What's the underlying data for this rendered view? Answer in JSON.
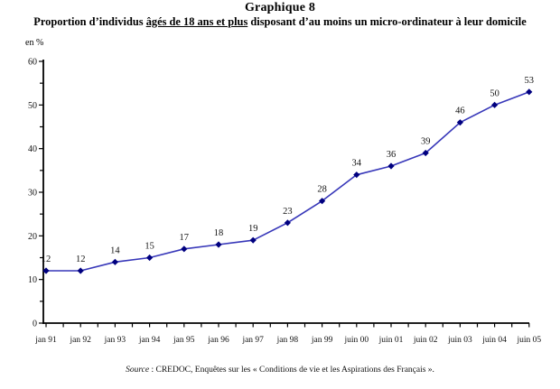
{
  "page": {
    "title": "Graphique 8",
    "subtitle_part1": "Proportion d’individus ",
    "subtitle_underlined": "âgés de 18 ans et plus",
    "subtitle_part2": " disposant d’au moins un micro-ordinateur à leur domicile",
    "unit_label": "en %",
    "source_label": "Source",
    "source_text": " : CREDOC, Enquêtes sur les « Conditions de vie et les Aspirations des Français »."
  },
  "chart_data": {
    "type": "line",
    "title": "Proportion d'individus âgés de 18 ans et plus disposant d'au moins un micro-ordinateur à leur domicile",
    "categories": [
      "jan 91",
      "jan 92",
      "jan 93",
      "jan 94",
      "jan 95",
      "jan 96",
      "jan 97",
      "jan 98",
      "jan 99",
      "juin 00",
      "juin 01",
      "juin 02",
      "juin 03",
      "juin 04",
      "juin 05"
    ],
    "values": [
      12,
      12,
      14,
      15,
      17,
      18,
      19,
      23,
      28,
      34,
      36,
      39,
      46,
      50,
      53
    ],
    "xlabel": "",
    "ylabel": "en %",
    "ylim": [
      0,
      60
    ],
    "ytick_interval": 10,
    "ytick_minor_interval": 5,
    "grid": false,
    "legend": false,
    "data_labels": true,
    "marker": "diamond",
    "line_color": "#3737b9",
    "marker_color": "#00007f",
    "axis_color": "#000000"
  }
}
